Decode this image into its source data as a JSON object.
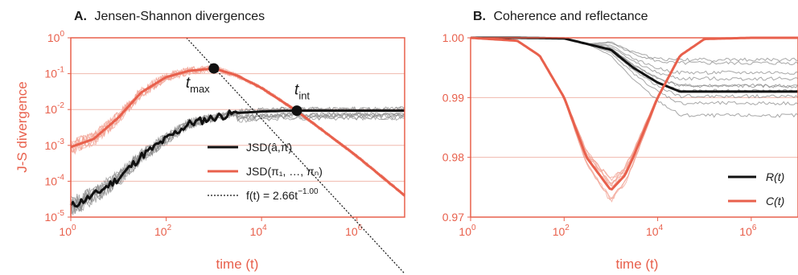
{
  "colors": {
    "red": "#e8604c",
    "red_light": "#f2a394",
    "grid": "#f0b8ad",
    "black": "#111111",
    "gray": "#8a8a8a"
  },
  "chart_data": [
    {
      "panel_letter": "A.",
      "title": "Jensen-Shannon divergences",
      "type": "line",
      "xscale": "log",
      "yscale": "log",
      "xlim": [
        1,
        10000000
      ],
      "ylim": [
        1e-05,
        1
      ],
      "xlabel": "time (t)",
      "ylabel": "J-S divergence",
      "xticks": [
        {
          "base": "10",
          "exp": "0",
          "value": 1
        },
        {
          "base": "10",
          "exp": "2",
          "value": 100
        },
        {
          "base": "10",
          "exp": "4",
          "value": 10000
        },
        {
          "base": "10",
          "exp": "6",
          "value": 1000000
        }
      ],
      "yticks": [
        {
          "base": "10",
          "exp": "0",
          "value": 1
        },
        {
          "base": "10",
          "exp": "-1",
          "value": 0.1
        },
        {
          "base": "10",
          "exp": "-2",
          "value": 0.01
        },
        {
          "base": "10",
          "exp": "-3",
          "value": 0.001
        },
        {
          "base": "10",
          "exp": "-4",
          "value": 0.0001
        },
        {
          "base": "10",
          "exp": "-5",
          "value": 1e-05
        }
      ],
      "grid": "horizontal",
      "legend_position": "lower-right",
      "legend": [
        {
          "label": "JSD(â,π̄)",
          "style": "solid-black"
        },
        {
          "label": "JSD(π₁, …, πₙ)",
          "style": "solid-red"
        },
        {
          "label": "f(t) = 2.66t",
          "sup": "−1.00",
          "style": "dotted-black"
        }
      ],
      "series": [
        {
          "name": "JSD(â,π̄)",
          "x": [
            1,
            3,
            10,
            30,
            100,
            300,
            1000,
            3000,
            10000,
            30000,
            55000,
            100000,
            1000000,
            10000000
          ],
          "y": [
            2e-05,
            4e-05,
            0.00012,
            0.0005,
            0.0015,
            0.004,
            0.006,
            0.008,
            0.0088,
            0.0092,
            0.0093,
            0.0093,
            0.0093,
            0.0093
          ]
        },
        {
          "name": "JSD(π₁, …, πₙ)",
          "x": [
            1,
            3,
            10,
            30,
            100,
            300,
            1000,
            3000,
            10000,
            55000,
            100000,
            1000000,
            10000000
          ],
          "y": [
            0.0009,
            0.0015,
            0.006,
            0.03,
            0.08,
            0.12,
            0.14,
            0.09,
            0.04,
            0.009,
            0.005,
            0.0005,
            4e-05
          ]
        },
        {
          "name": "f(t) = 2.66t^-1.00",
          "x": [
            266,
            10000000
          ],
          "y": [
            1,
            2.66e-07
          ]
        }
      ],
      "annotations": [
        {
          "label": "t",
          "sub": "max",
          "x": 1000,
          "y": 0.14
        },
        {
          "label": "t",
          "sub": "int",
          "x": 55000,
          "y": 0.0093
        }
      ]
    },
    {
      "panel_letter": "B.",
      "title": "Coherence and reflectance",
      "type": "line",
      "xscale": "log",
      "yscale": "linear",
      "xlim": [
        1,
        10000000
      ],
      "ylim": [
        0.97,
        1.0
      ],
      "xlabel": "time (t)",
      "ylabel": "",
      "xticks": [
        {
          "base": "10",
          "exp": "0",
          "value": 1
        },
        {
          "base": "10",
          "exp": "2",
          "value": 100
        },
        {
          "base": "10",
          "exp": "4",
          "value": 10000
        },
        {
          "base": "10",
          "exp": "6",
          "value": 1000000
        }
      ],
      "yticks": [
        {
          "label": "1.00",
          "value": 1.0
        },
        {
          "label": "0.99",
          "value": 0.99
        },
        {
          "label": "0.98",
          "value": 0.98
        },
        {
          "label": "0.97",
          "value": 0.97
        }
      ],
      "grid": "horizontal",
      "legend_position": "lower-right",
      "legend": [
        {
          "label": "R(t)",
          "style": "solid-black"
        },
        {
          "label": "C(t)",
          "style": "solid-red"
        }
      ],
      "series": [
        {
          "name": "R(t)",
          "x": [
            1,
            10,
            100,
            1000,
            3000,
            10000,
            30000,
            100000,
            1000000,
            10000000
          ],
          "y": [
            1.0,
            1.0,
            0.9999,
            0.998,
            0.995,
            0.9925,
            0.991,
            0.991,
            0.991,
            0.991
          ]
        },
        {
          "name": "C(t)",
          "x": [
            1,
            10,
            30,
            100,
            300,
            1000,
            2000,
            3000,
            10000,
            30000,
            100000,
            1000000,
            10000000
          ],
          "y": [
            1.0,
            0.9995,
            0.997,
            0.99,
            0.98,
            0.9745,
            0.977,
            0.98,
            0.99,
            0.997,
            0.9998,
            1.0,
            1.0
          ]
        }
      ]
    }
  ]
}
